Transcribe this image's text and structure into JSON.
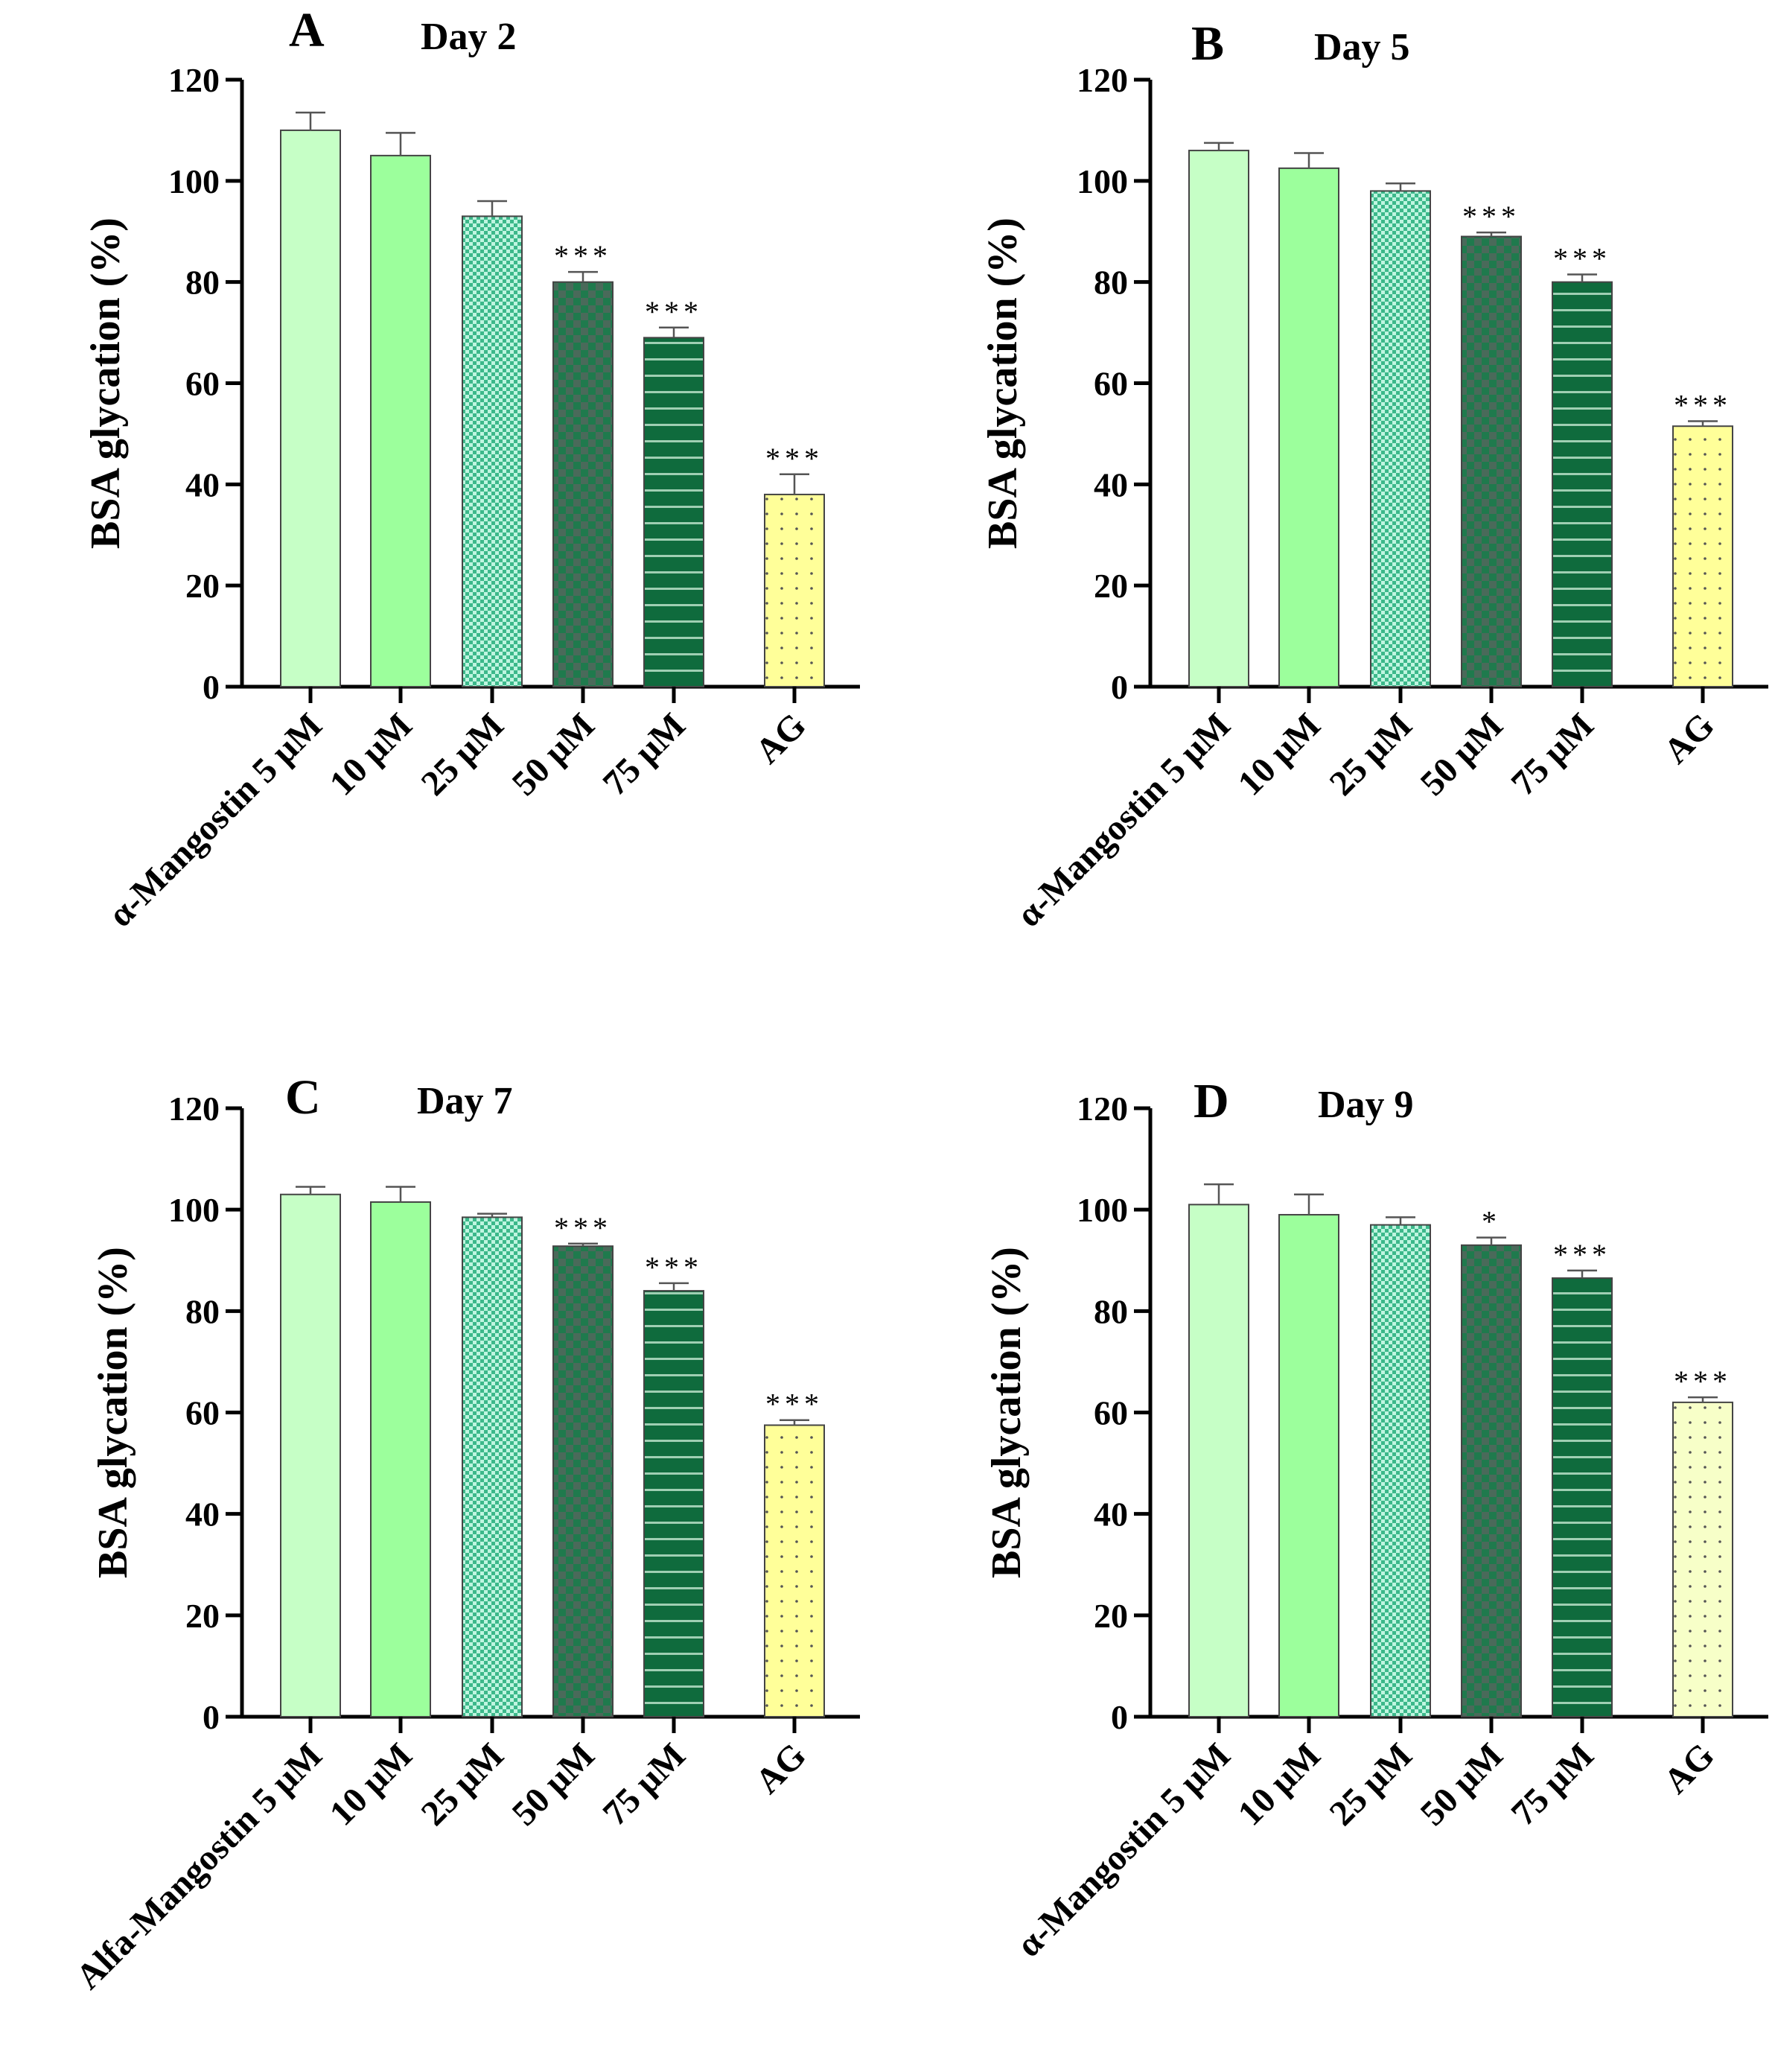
{
  "figure": {
    "ylabel": "BSA glycation (%)",
    "colors": {
      "c1": "#c6ffc6",
      "c2": "#9cff9c",
      "c3": "#3cb88a",
      "c4": "#1f7a4d",
      "c5": "#0f6b3d",
      "c6": "#ffff99"
    }
  },
  "chart_data": [
    {
      "type": "bar",
      "panel_label": "A",
      "title": "Day 2",
      "categories": [
        "α-Mangostin 5 μM",
        "10 μM",
        "25 μM",
        "50 μM",
        "75 μM",
        "AG"
      ],
      "values": [
        110,
        105,
        93,
        80,
        69,
        38
      ],
      "errors": [
        3.5,
        4.5,
        3,
        2,
        2,
        4
      ],
      "significance": [
        "",
        "",
        "",
        "***",
        "***",
        "***"
      ],
      "ylabel": "BSA glycation (%)",
      "ylim": [
        0,
        120
      ],
      "yticks": [
        0,
        20,
        40,
        60,
        80,
        100,
        120
      ]
    },
    {
      "type": "bar",
      "panel_label": "B",
      "title": "Day 5",
      "categories": [
        "α-Mangostin 5 μM",
        "10 μM",
        "25 μM",
        "50 μM",
        "75 μM",
        "AG"
      ],
      "values": [
        106,
        102.5,
        98,
        89,
        80,
        51.5
      ],
      "errors": [
        1.5,
        3,
        1.5,
        0.8,
        1.5,
        1
      ],
      "significance": [
        "",
        "",
        "",
        "***",
        "***",
        "***"
      ],
      "ylabel": "BSA glycation (%)",
      "ylim": [
        0,
        120
      ],
      "yticks": [
        0,
        20,
        40,
        60,
        80,
        100,
        120
      ]
    },
    {
      "type": "bar",
      "panel_label": "C",
      "title": "Day 7",
      "categories": [
        "Alfa-Mangostin 5 μM",
        "10 μM",
        "25 μM",
        "50 μM",
        "75 μM",
        "AG"
      ],
      "values": [
        103,
        101.5,
        98.5,
        92.8,
        84,
        57.5
      ],
      "errors": [
        1.5,
        3,
        0.7,
        0.5,
        1.5,
        1
      ],
      "significance": [
        "",
        "",
        "",
        "***",
        "***",
        "***"
      ],
      "ylabel": "BSA glycation (%)",
      "ylim": [
        0,
        120
      ],
      "yticks": [
        0,
        20,
        40,
        60,
        80,
        100,
        120
      ]
    },
    {
      "type": "bar",
      "panel_label": "D",
      "title": "Day 9",
      "categories": [
        "α-Mangostin 5 μM",
        "10 μM",
        "25 μM",
        "50 μM",
        "75 μM",
        "AG"
      ],
      "values": [
        101,
        99,
        97,
        93,
        86.5,
        62
      ],
      "errors": [
        4,
        4,
        1.5,
        1.5,
        1.5,
        1
      ],
      "significance": [
        "",
        "",
        "",
        "*",
        "***",
        "***"
      ],
      "ylabel": "BSA glycation (%)",
      "ylim": [
        0,
        120
      ],
      "yticks": [
        0,
        20,
        40,
        60,
        80,
        100,
        120
      ]
    }
  ]
}
